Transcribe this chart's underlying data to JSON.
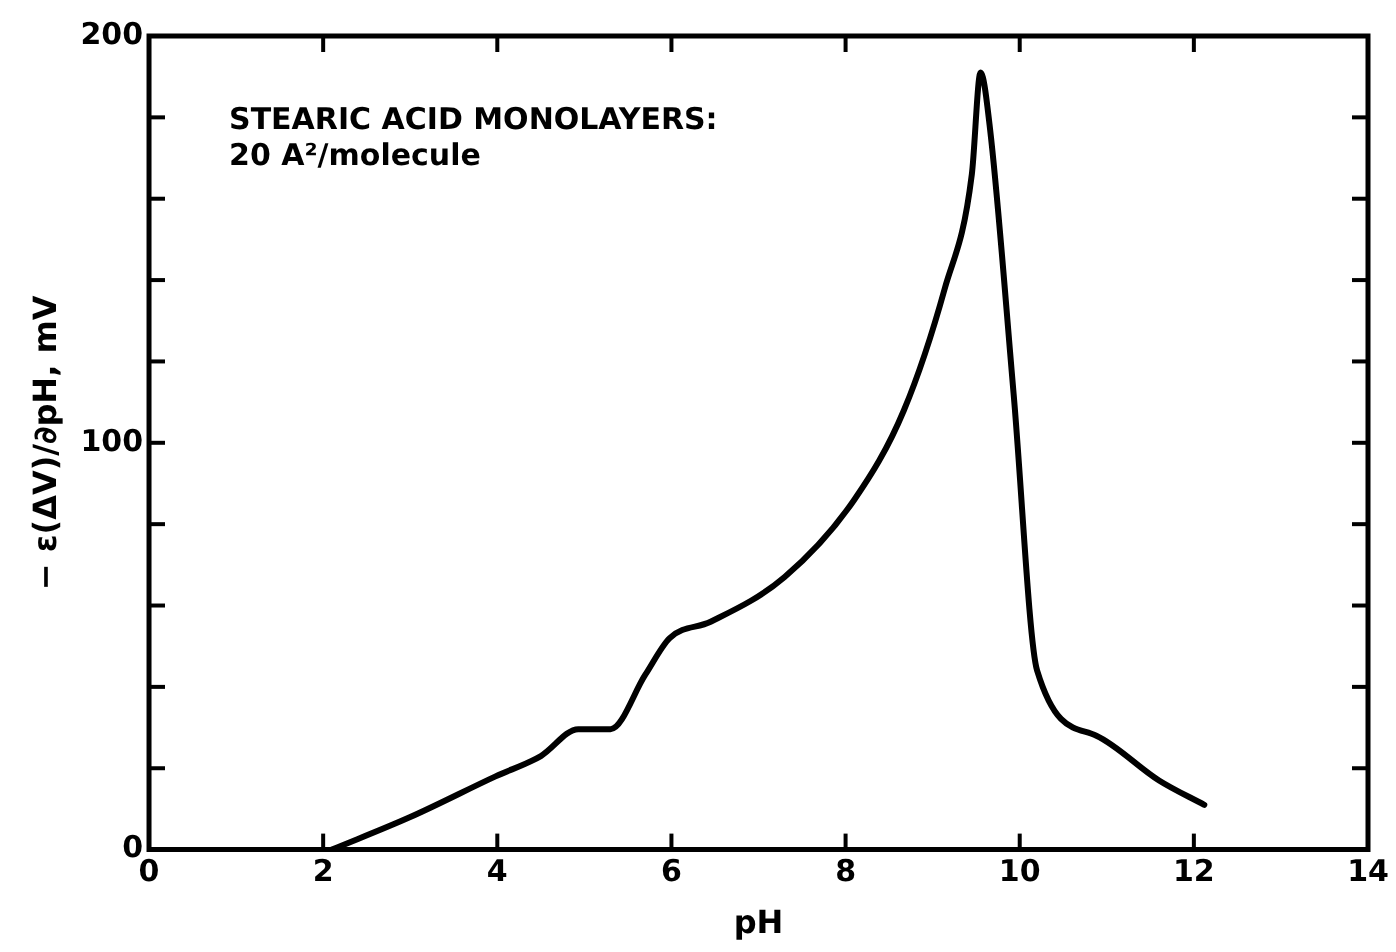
{
  "chart_data": {
    "type": "line",
    "xlabel": "pH",
    "ylabel": "− ε(ΔV)/∂pH, mV",
    "annotations": [
      "STEARIC ACID MONOLAYERS:",
      "20 A²/molecule"
    ],
    "series": [
      {
        "color": "#000000",
        "x": [
          2.1,
          3.0,
          3.98,
          4.5,
          4.93,
          5.3,
          5.7,
          5.98,
          6.45,
          7.3,
          8.1,
          8.67,
          9.14,
          9.45,
          9.55,
          9.66,
          9.93,
          10.2,
          10.88,
          11.6,
          12.12
        ],
        "values": [
          0,
          8,
          18,
          23,
          29.6,
          29.6,
          43,
          52,
          56,
          67,
          86,
          108,
          138,
          166,
          191,
          177,
          112,
          44,
          28,
          17,
          11
        ]
      }
    ],
    "xlim": [
      0,
      14
    ],
    "xticks": [
      0,
      2,
      4,
      6,
      8,
      10,
      12,
      14
    ],
    "ylim": [
      0,
      200
    ],
    "yticks": [
      0,
      {
        "value": 20,
        "label": null
      },
      {
        "value": 40,
        "label": null
      },
      {
        "value": 60,
        "label": null
      },
      {
        "value": 80,
        "label": null
      },
      100,
      {
        "value": 120,
        "label": null
      },
      {
        "value": 140,
        "label": null
      },
      {
        "value": 160,
        "label": null
      },
      {
        "value": 180,
        "label": null
      },
      200
    ],
    "grid": false,
    "legend": false,
    "marker": "none",
    "line_style": "solid"
  }
}
